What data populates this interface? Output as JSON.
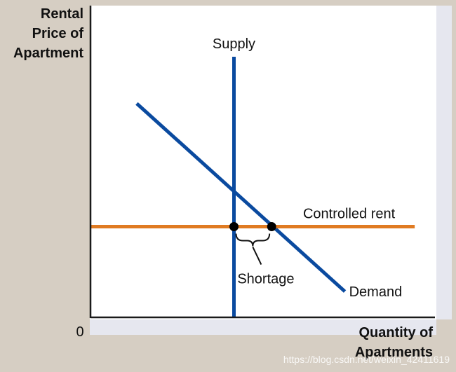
{
  "chart_data": {
    "type": "line",
    "title": "",
    "ylabel_lines": [
      "Rental",
      "Price of",
      "Apartment"
    ],
    "xlabel_lines": [
      "Quantity of",
      "Apartments"
    ],
    "origin_label": "0",
    "xlim": [
      0,
      100
    ],
    "ylim": [
      0,
      100
    ],
    "grid": false,
    "series": [
      {
        "name": "Supply",
        "color": "#0a4a9f",
        "x": [
          41.7,
          41.7
        ],
        "y": [
          0,
          83.6
        ]
      },
      {
        "name": "Demand",
        "color": "#0a4a9f",
        "x": [
          13.3,
          74.1
        ],
        "y": [
          68.6,
          8.3
        ]
      },
      {
        "name": "Controlled rent",
        "color": "#e07b22",
        "x": [
          0,
          94.5
        ],
        "y": [
          29.1,
          29.1
        ]
      }
    ],
    "points": [
      {
        "x": 41.7,
        "y": 29.1
      },
      {
        "x": 52.7,
        "y": 29.1
      }
    ],
    "annotations": [
      {
        "text": "Shortage",
        "x_from": 41.7,
        "x_to": 52.7,
        "y": 29.1
      }
    ]
  },
  "watermark": "https://blog.csdn.net/weixin_42411619",
  "colors": {
    "background": "#d6cec3",
    "plot": "#ffffff",
    "axis": "#1a1a1a",
    "blue": "#0a4a9f",
    "orange": "#e07b22"
  }
}
